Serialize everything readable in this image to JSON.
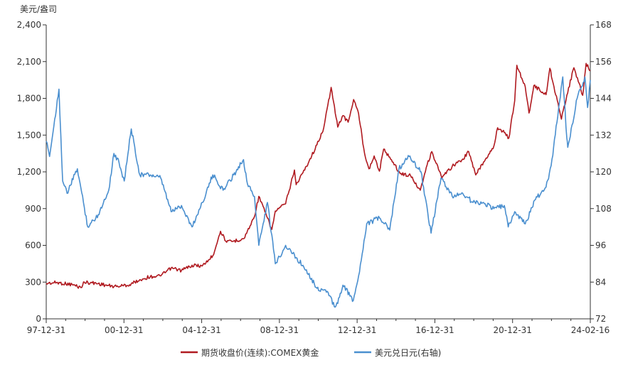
{
  "chart_data": {
    "type": "line",
    "title": "",
    "y_unit_label": "美元/盎司",
    "ylabel_left": "",
    "ylabel_right": "",
    "x_tick_labels": [
      "97-12-31",
      "00-12-31",
      "04-12-31",
      "08-12-31",
      "12-12-31",
      "16-12-31",
      "20-12-31",
      "24-02-16"
    ],
    "x_range": [
      "1997-12-31",
      "2024-02-16"
    ],
    "ylim_left": [
      0,
      2400
    ],
    "yticks_left": [
      "0",
      "300",
      "600",
      "900",
      "1,200",
      "1,500",
      "1,800",
      "2,100",
      "2,400"
    ],
    "ylim_right": [
      72,
      168
    ],
    "yticks_right": [
      "72",
      "84",
      "96",
      "108",
      "120",
      "132",
      "144",
      "156",
      "168"
    ],
    "grid": false,
    "legend_position": "bottom",
    "series": [
      {
        "name": "期货收盘价(连续):COMEX黄金",
        "axis": "left",
        "color": "#b01a20",
        "points": [
          [
            "1997-12-31",
            290
          ],
          [
            "1998-06-30",
            296
          ],
          [
            "1999-03-31",
            280
          ],
          [
            "1999-08-31",
            255
          ],
          [
            "1999-10-31",
            300
          ],
          [
            "2000-06-30",
            288
          ],
          [
            "2001-03-31",
            262
          ],
          [
            "2001-12-31",
            278
          ],
          [
            "2002-06-30",
            320
          ],
          [
            "2002-12-31",
            345
          ],
          [
            "2003-06-30",
            350
          ],
          [
            "2003-12-31",
            415
          ],
          [
            "2004-06-30",
            395
          ],
          [
            "2004-12-31",
            438
          ],
          [
            "2005-06-30",
            432
          ],
          [
            "2005-12-31",
            515
          ],
          [
            "2006-05-15",
            715
          ],
          [
            "2006-08-31",
            625
          ],
          [
            "2006-12-31",
            635
          ],
          [
            "2007-06-30",
            655
          ],
          [
            "2007-12-31",
            835
          ],
          [
            "2008-03-17",
            1000
          ],
          [
            "2008-10-31",
            730
          ],
          [
            "2008-12-31",
            880
          ],
          [
            "2009-06-30",
            940
          ],
          [
            "2009-12-02",
            1215
          ],
          [
            "2009-12-31",
            1095
          ],
          [
            "2010-06-30",
            1245
          ],
          [
            "2010-12-31",
            1420
          ],
          [
            "2011-04-30",
            1560
          ],
          [
            "2011-09-06",
            1890
          ],
          [
            "2011-12-31",
            1565
          ],
          [
            "2012-03-31",
            1660
          ],
          [
            "2012-06-30",
            1605
          ],
          [
            "2012-10-05",
            1790
          ],
          [
            "2012-12-31",
            1675
          ],
          [
            "2013-04-15",
            1350
          ],
          [
            "2013-06-30",
            1225
          ],
          [
            "2013-09-30",
            1330
          ],
          [
            "2013-12-31",
            1205
          ],
          [
            "2014-03-15",
            1385
          ],
          [
            "2014-06-30",
            1320
          ],
          [
            "2014-12-31",
            1185
          ],
          [
            "2015-06-30",
            1170
          ],
          [
            "2015-12-17",
            1050
          ],
          [
            "2016-03-31",
            1235
          ],
          [
            "2016-07-06",
            1365
          ],
          [
            "2016-12-31",
            1150
          ],
          [
            "2017-06-30",
            1245
          ],
          [
            "2017-12-31",
            1305
          ],
          [
            "2018-04-15",
            1365
          ],
          [
            "2018-08-16",
            1175
          ],
          [
            "2018-12-31",
            1280
          ],
          [
            "2019-06-30",
            1410
          ],
          [
            "2019-09-04",
            1560
          ],
          [
            "2019-12-31",
            1520
          ],
          [
            "2020-03-19",
            1475
          ],
          [
            "2020-06-30",
            1780
          ],
          [
            "2020-08-06",
            2070
          ],
          [
            "2020-12-31",
            1895
          ],
          [
            "2021-03-08",
            1680
          ],
          [
            "2021-06-01",
            1905
          ],
          [
            "2021-12-31",
            1830
          ],
          [
            "2022-03-08",
            2045
          ],
          [
            "2022-09-28",
            1630
          ],
          [
            "2022-12-31",
            1825
          ],
          [
            "2023-05-04",
            2050
          ],
          [
            "2023-10-05",
            1825
          ],
          [
            "2023-12-04",
            2085
          ],
          [
            "2024-02-16",
            2025
          ]
        ]
      },
      {
        "name": "美元兑日元(右轴)",
        "axis": "right",
        "color": "#4a8fcf",
        "points": [
          [
            "1997-12-31",
            130
          ],
          [
            "1998-02-28",
            125
          ],
          [
            "1998-08-11",
            147
          ],
          [
            "1998-10-15",
            117
          ],
          [
            "1998-12-31",
            113
          ],
          [
            "1999-06-30",
            121
          ],
          [
            "1999-12-31",
            102
          ],
          [
            "2000-06-30",
            106
          ],
          [
            "2000-12-31",
            114
          ],
          [
            "2001-04-01",
            126
          ],
          [
            "2001-06-30",
            123
          ],
          [
            "2001-09-30",
            117
          ],
          [
            "2002-01-31",
            134
          ],
          [
            "2002-06-30",
            119
          ],
          [
            "2002-12-31",
            119
          ],
          [
            "2003-06-30",
            118
          ],
          [
            "2003-12-31",
            107
          ],
          [
            "2004-06-30",
            109
          ],
          [
            "2004-12-31",
            102
          ],
          [
            "2005-06-30",
            110
          ],
          [
            "2005-12-31",
            119
          ],
          [
            "2006-06-30",
            114
          ],
          [
            "2006-12-31",
            119
          ],
          [
            "2007-06-22",
            124
          ],
          [
            "2007-08-31",
            116
          ],
          [
            "2007-12-31",
            112
          ],
          [
            "2008-03-17",
            96
          ],
          [
            "2008-08-15",
            110
          ],
          [
            "2008-12-31",
            90
          ],
          [
            "2009-06-30",
            96
          ],
          [
            "2009-12-31",
            92
          ],
          [
            "2010-06-30",
            88
          ],
          [
            "2010-12-31",
            82
          ],
          [
            "2011-06-30",
            81
          ],
          [
            "2011-10-31",
            76
          ],
          [
            "2011-12-31",
            77
          ],
          [
            "2012-03-31",
            83
          ],
          [
            "2012-09-30",
            78
          ],
          [
            "2012-12-31",
            86
          ],
          [
            "2013-05-22",
            103
          ],
          [
            "2013-12-31",
            105
          ],
          [
            "2014-06-30",
            101
          ],
          [
            "2014-12-08",
            121
          ],
          [
            "2015-06-05",
            125
          ],
          [
            "2015-12-31",
            120
          ],
          [
            "2016-06-24",
            100
          ],
          [
            "2016-12-15",
            118
          ],
          [
            "2017-06-30",
            112
          ],
          [
            "2017-12-31",
            113
          ],
          [
            "2018-06-30",
            110
          ],
          [
            "2018-12-31",
            110
          ],
          [
            "2019-06-30",
            108
          ],
          [
            "2019-12-31",
            109
          ],
          [
            "2020-03-09",
            102
          ],
          [
            "2020-06-30",
            107
          ],
          [
            "2020-12-31",
            103
          ],
          [
            "2021-06-30",
            111
          ],
          [
            "2021-12-31",
            115
          ],
          [
            "2022-03-31",
            122
          ],
          [
            "2022-10-21",
            151
          ],
          [
            "2022-12-31",
            131
          ],
          [
            "2023-01-16",
            128
          ],
          [
            "2023-06-30",
            144
          ],
          [
            "2023-11-13",
            151
          ],
          [
            "2023-12-31",
            141
          ],
          [
            "2024-02-16",
            150
          ]
        ]
      }
    ]
  }
}
